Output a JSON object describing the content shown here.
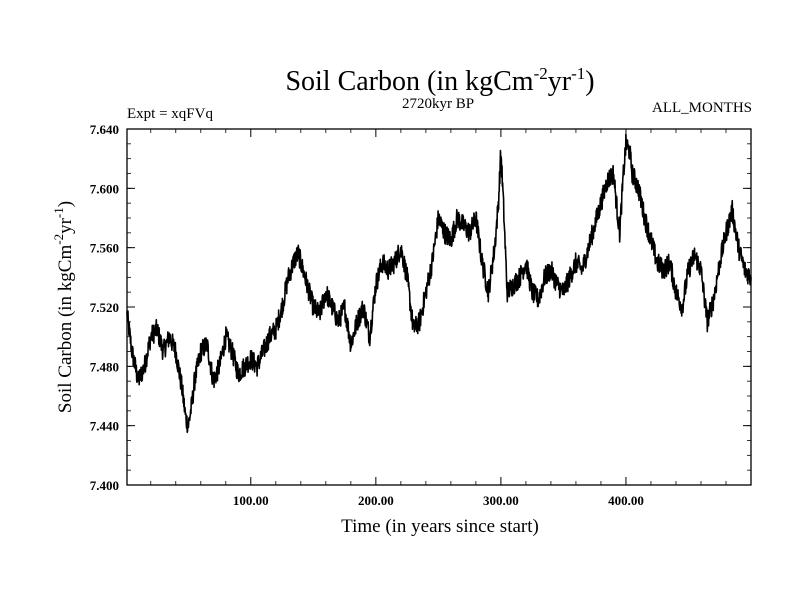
{
  "chart_data": {
    "type": "line",
    "title": "Soil Carbon (in kgCm",
    "title_sup1": "-2",
    "title_mid": "yr",
    "title_sup2": "-1",
    "title_end": ")",
    "left_label": "Expt = xqFVq",
    "center_label": "2720kyr BP",
    "right_label": "ALL_MONTHS",
    "xlabel": "Time (in years since start)",
    "ylabel_parts": [
      "Soil Carbon (in kgCm",
      "-2",
      "yr",
      "-1",
      ")"
    ],
    "xlim": [
      1,
      500
    ],
    "ylim": [
      7.4,
      7.64
    ],
    "xticks": [
      100,
      200,
      300,
      400
    ],
    "xtick_labels": [
      "100.00",
      "200.00",
      "300.00",
      "400.00"
    ],
    "yticks": [
      7.4,
      7.44,
      7.48,
      7.52,
      7.56,
      7.6,
      7.64
    ],
    "ytick_labels": [
      "7.400",
      "7.440",
      "7.480",
      "7.520",
      "7.560",
      "7.600",
      "7.640"
    ],
    "series": [
      {
        "name": "Soil Carbon",
        "color": "#000000",
        "x": [
          1,
          5,
          10,
          15,
          20,
          25,
          30,
          35,
          40,
          45,
          48,
          50,
          53,
          55,
          60,
          65,
          70,
          75,
          80,
          85,
          90,
          95,
          100,
          105,
          110,
          115,
          120,
          125,
          130,
          135,
          138,
          140,
          145,
          150,
          155,
          160,
          165,
          170,
          175,
          180,
          185,
          190,
          195,
          200,
          205,
          210,
          215,
          220,
          225,
          230,
          235,
          240,
          245,
          250,
          255,
          260,
          265,
          270,
          275,
          280,
          285,
          290,
          295,
          298,
          300,
          302,
          305,
          310,
          315,
          320,
          325,
          330,
          335,
          340,
          345,
          350,
          355,
          360,
          365,
          370,
          375,
          380,
          385,
          390,
          393,
          395,
          398,
          400,
          403,
          405,
          410,
          415,
          420,
          425,
          430,
          435,
          440,
          445,
          450,
          455,
          460,
          465,
          470,
          475,
          480,
          485,
          490,
          495,
          500
        ],
        "y": [
          7.515,
          7.49,
          7.47,
          7.48,
          7.5,
          7.505,
          7.49,
          7.5,
          7.49,
          7.465,
          7.445,
          7.44,
          7.455,
          7.47,
          7.49,
          7.495,
          7.47,
          7.48,
          7.5,
          7.49,
          7.475,
          7.48,
          7.485,
          7.48,
          7.49,
          7.5,
          7.505,
          7.52,
          7.54,
          7.552,
          7.556,
          7.55,
          7.535,
          7.52,
          7.515,
          7.53,
          7.52,
          7.51,
          7.52,
          7.495,
          7.51,
          7.52,
          7.5,
          7.535,
          7.55,
          7.545,
          7.55,
          7.56,
          7.54,
          7.505,
          7.51,
          7.53,
          7.55,
          7.58,
          7.57,
          7.565,
          7.58,
          7.575,
          7.57,
          7.58,
          7.55,
          7.53,
          7.56,
          7.59,
          7.625,
          7.59,
          7.53,
          7.535,
          7.54,
          7.55,
          7.53,
          7.525,
          7.54,
          7.545,
          7.535,
          7.53,
          7.54,
          7.55,
          7.545,
          7.56,
          7.575,
          7.59,
          7.605,
          7.61,
          7.585,
          7.57,
          7.61,
          7.63,
          7.625,
          7.61,
          7.6,
          7.58,
          7.565,
          7.55,
          7.545,
          7.55,
          7.53,
          7.52,
          7.545,
          7.555,
          7.545,
          7.51,
          7.525,
          7.55,
          7.57,
          7.585,
          7.56,
          7.545,
          7.54
        ]
      }
    ]
  }
}
